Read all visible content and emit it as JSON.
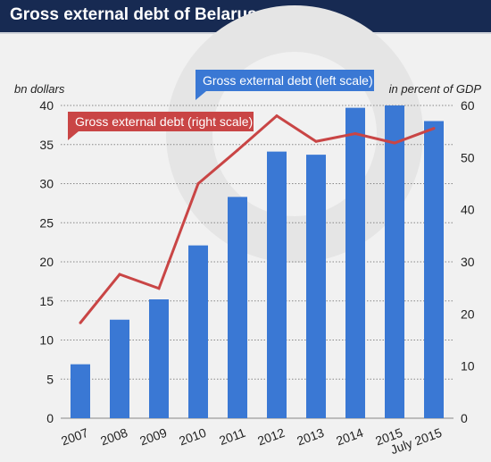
{
  "header": {
    "title": "Gross external debt of Belarus"
  },
  "colors": {
    "header_bg": "#172a52",
    "bar": "#3a78d4",
    "line": "#c94545",
    "background": "#f1f1f1",
    "gridline": "#888888"
  },
  "chart_data": {
    "type": "bar",
    "title": "Gross external debt of Belarus",
    "categories": [
      "2007",
      "2008",
      "2009",
      "2010",
      "2011",
      "2012",
      "2013",
      "2014",
      "2015",
      "July 2015"
    ],
    "series": [
      {
        "name": "Gross external debt (left scale)",
        "type": "bar",
        "axis": "left",
        "values": [
          6.9,
          12.6,
          15.2,
          22.1,
          28.3,
          34.1,
          33.7,
          39.7,
          40.0,
          38.0
        ]
      },
      {
        "name": "Gross external debt (right scale)",
        "type": "line",
        "axis": "right",
        "values": [
          18.3,
          27.6,
          24.9,
          45.0,
          51.4,
          58.0,
          53.1,
          54.6,
          52.8,
          55.6
        ]
      }
    ],
    "y_left": {
      "label": "bn dollars",
      "range": [
        0,
        40
      ],
      "ticks": [
        "0",
        "5",
        "10",
        "15",
        "20",
        "25",
        "30",
        "35",
        "40"
      ]
    },
    "y_right": {
      "label": "in percent of GDP",
      "range": [
        0,
        60
      ],
      "ticks": [
        "0",
        "10",
        "20",
        "30",
        "40",
        "50",
        "60"
      ]
    },
    "grid": "horizontal dotted",
    "legend": "inline labels"
  }
}
